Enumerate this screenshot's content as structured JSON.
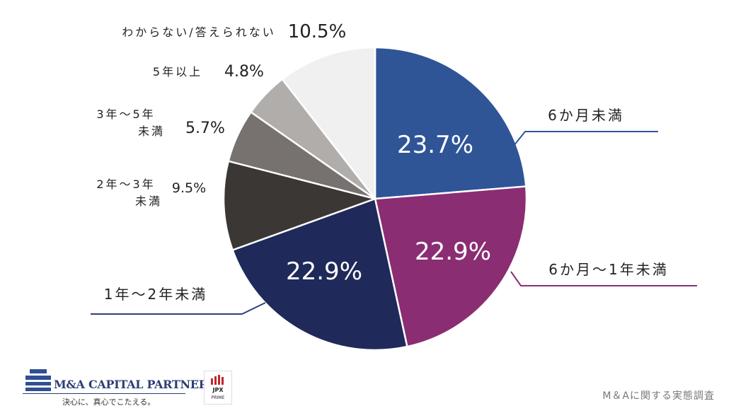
{
  "chart_data": {
    "type": "pie",
    "title": "",
    "slices": [
      {
        "label": "6か月未満",
        "value": 23.7,
        "display": "23.7%",
        "color": "#2f5597"
      },
      {
        "label": "6か月～1年未満",
        "value": 22.9,
        "display": "22.9%",
        "color": "#8b2d73"
      },
      {
        "label": "1年～2年未満",
        "value": 22.9,
        "display": "22.9%",
        "color": "#1f2a5a"
      },
      {
        "label": "2年～3年未満",
        "value": 9.5,
        "display": "9.5%",
        "color": "#3b3735"
      },
      {
        "label": "3年～5年未満",
        "value": 5.7,
        "display": "5.7%",
        "color": "#77716f"
      },
      {
        "label": "5年以上",
        "value": 4.8,
        "display": "4.8%",
        "color": "#b0adab"
      },
      {
        "label": "わからない/答えられない",
        "value": 10.5,
        "display": "10.5%",
        "color": "#f0f0f0"
      }
    ]
  },
  "footer": {
    "source": "M＆Aに関する実態調査",
    "logo_name": "M&A CAPITAL PARTNERS",
    "logo_tagline": "決心に、真心でこたえる。",
    "jpx_top": "JPX",
    "jpx_bottom": "PRIME"
  }
}
